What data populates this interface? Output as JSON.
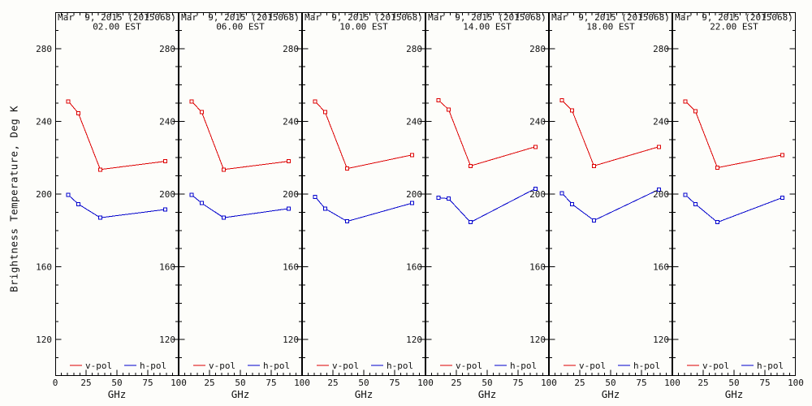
{
  "chart_data": {
    "type": "line",
    "title": "Mar  9, 2015 (2015068)",
    "ylabel": "Brightness Temperature, Deg K",
    "xlabel": "GHz",
    "x": [
      10.65,
      18.7,
      36.5,
      89.0
    ],
    "xlim": [
      0,
      100
    ],
    "ylim": [
      100,
      300
    ],
    "xticks": [
      0,
      25,
      50,
      75,
      100
    ],
    "yticks": [
      280,
      240,
      200,
      160,
      120
    ],
    "grid": false,
    "legend": [
      "v-pol",
      "h-pol"
    ],
    "legend_position": "bottom-inside",
    "colors": {
      "v-pol": "#dd0000",
      "h-pol": "#0000cc"
    },
    "marker": "open-square",
    "panels": [
      {
        "time": "02.00 EST",
        "series": [
          {
            "name": "v-pol",
            "values": [
              251.0,
              244.5,
              213.5,
              218.0
            ]
          },
          {
            "name": "h-pol",
            "values": [
              199.5,
              194.5,
              187.0,
              191.5
            ]
          }
        ]
      },
      {
        "time": "06.00 EST",
        "series": [
          {
            "name": "v-pol",
            "values": [
              251.0,
              245.0,
              213.5,
              218.0
            ]
          },
          {
            "name": "h-pol",
            "values": [
              199.5,
              195.0,
              187.0,
              192.0
            ]
          }
        ]
      },
      {
        "time": "10.00 EST",
        "series": [
          {
            "name": "v-pol",
            "values": [
              251.0,
              245.0,
              214.0,
              221.5
            ]
          },
          {
            "name": "h-pol",
            "values": [
              198.5,
              192.0,
              185.0,
              195.0
            ]
          }
        ]
      },
      {
        "time": "14.00 EST",
        "series": [
          {
            "name": "v-pol",
            "values": [
              251.5,
              246.5,
              215.5,
              226.0
            ]
          },
          {
            "name": "h-pol",
            "values": [
              198.0,
              197.5,
              184.5,
              203.0
            ]
          }
        ]
      },
      {
        "time": "18.00 EST",
        "series": [
          {
            "name": "v-pol",
            "values": [
              251.5,
              246.0,
              215.5,
              226.0
            ]
          },
          {
            "name": "h-pol",
            "values": [
              200.5,
              194.5,
              185.5,
              202.5
            ]
          }
        ]
      },
      {
        "time": "22.00 EST",
        "series": [
          {
            "name": "v-pol",
            "values": [
              251.0,
              245.5,
              214.5,
              221.5
            ]
          },
          {
            "name": "h-pol",
            "values": [
              199.5,
              194.5,
              184.5,
              198.0
            ]
          }
        ]
      }
    ]
  }
}
